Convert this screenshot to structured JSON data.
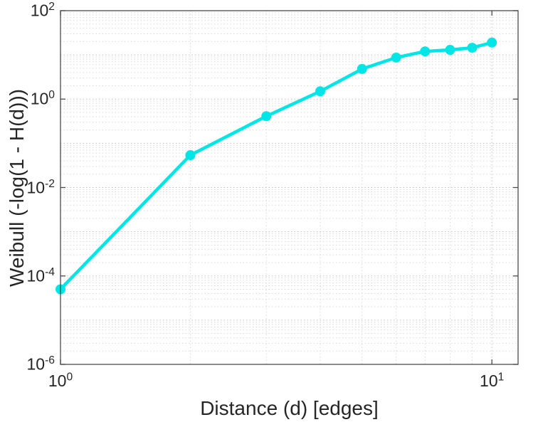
{
  "chart_data": {
    "type": "line",
    "title": "",
    "xlabel": "Distance (d) [edges]",
    "ylabel": "Weibull (-log(1 - H(d)))",
    "xscale": "log",
    "yscale": "log",
    "xlim": [
      1,
      11.5
    ],
    "ylim": [
      1e-06,
      100
    ],
    "x": [
      1,
      2,
      3,
      4,
      5,
      6,
      7,
      8,
      9,
      10
    ],
    "y": [
      5e-05,
      0.054,
      0.41,
      1.5,
      4.8,
      8.7,
      12,
      13,
      14.5,
      19
    ],
    "x_tick_exponents": [
      0,
      1
    ],
    "y_tick_exponents": [
      -6,
      -4,
      -2,
      0,
      2
    ],
    "grid": true,
    "legend": "none",
    "line_color": "#00e5e5",
    "marker": "circle",
    "marker_radius": 7,
    "line_width": 4.5,
    "grid_minor_color": "#d9d9d9",
    "grid_major_color": "#bfbfbf",
    "axes_color": "#4a4a4a",
    "background": "#ffffff"
  }
}
